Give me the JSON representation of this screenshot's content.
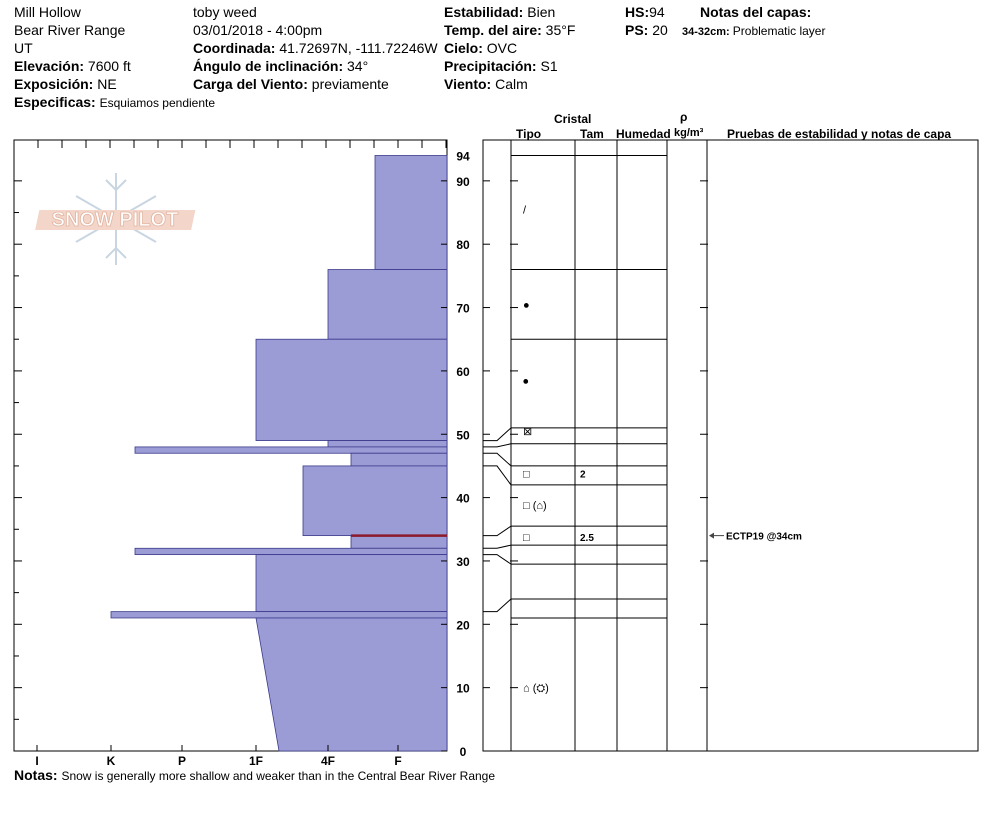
{
  "header": {
    "location": "Mill Hollow",
    "range": "Bear River Range",
    "state": "UT",
    "elevation_label": "Elevación:",
    "elevation": "7600 ft",
    "aspect_label": "Exposición:",
    "aspect": "NE",
    "specifics_label": "Especificas:",
    "specifics": "Esquiamos pendiente",
    "observer": "toby weed",
    "datetime": "03/01/2018 - 4:00pm",
    "coord_label": "Coordinada:",
    "coord": "41.72697N, -111.72246W",
    "slope_label": "Ángulo de inclinación:",
    "slope": "34°",
    "wind_load_label": "Carga del Viento:",
    "wind_load": "previamente",
    "stability_label": "Estabilidad:",
    "stability": "Bien",
    "air_temp_label": "Temp. del aire:",
    "air_temp": "35°F",
    "sky_label": "Cielo:",
    "sky": "OVC",
    "precip_label": "Precipitación:",
    "precip": "S1",
    "wind_label": "Viento:",
    "wind": "Calm",
    "hs_label": "HS:",
    "hs": "94",
    "ps_label": "PS:",
    "ps": "20",
    "layer_notes_label": "Notas del capas:",
    "layer_note_range": "34-32cm:",
    "layer_note": "Problematic layer"
  },
  "logo_text": "SNOW PILOT",
  "table_headers": {
    "cristal": "Cristal",
    "rho": "ρ",
    "tipo": "Tipo",
    "tam": "Tam",
    "humedad": "Humedad",
    "density_unit": "kg/m³",
    "tests": "Pruebas de estabilidad y notas de capa"
  },
  "footer": {
    "notes_label": "Notas:",
    "notes": "Snow is generally more shallow and weaker than in the Central Bear River Range"
  },
  "chart_data": {
    "type": "bar",
    "description_axis": "height (cm) vs hand hardness",
    "height_ticks": [
      0,
      10,
      20,
      30,
      40,
      50,
      60,
      70,
      80,
      90
    ],
    "top_label": "94",
    "height_range": [
      0,
      94
    ],
    "hardness_categories": [
      "I",
      "K",
      "P",
      "1F",
      "4F",
      "F"
    ],
    "colors": {
      "fill": "#9b9bd6",
      "stroke": "#3a3a8a",
      "problem": "#8b1a2a"
    },
    "layers": [
      {
        "top": 94,
        "bottom": 76,
        "hardness": "F"
      },
      {
        "top": 76,
        "bottom": 65,
        "hardness": "4F"
      },
      {
        "top": 65,
        "bottom": 49,
        "hardness": "1F"
      },
      {
        "top": 49,
        "bottom": 48,
        "hardness": "4F"
      },
      {
        "top": 48,
        "bottom": 47,
        "hardness": "K+"
      },
      {
        "top": 47,
        "bottom": 45,
        "hardness": "4F-F"
      },
      {
        "top": 45,
        "bottom": 34,
        "hardness": "P-1F"
      },
      {
        "top": 34,
        "bottom": 32,
        "hardness": "4F-F"
      },
      {
        "top": 32,
        "bottom": 31,
        "hardness": "K+"
      },
      {
        "top": 31,
        "bottom": 22,
        "hardness": "1F"
      },
      {
        "top": 22,
        "bottom": 21,
        "hardness": "K"
      },
      {
        "top": 21,
        "bottom": 0,
        "hardness": "1F to 1F-4F"
      }
    ],
    "crystals": [
      {
        "height": 85.5,
        "symbol": "/"
      },
      {
        "height": 70.5,
        "symbol": "●"
      },
      {
        "height": 58.5,
        "symbol": "⦁"
      },
      {
        "height": 50.5,
        "symbol": "⊠"
      },
      {
        "height": 43.8,
        "symbol": "□",
        "size": "2"
      },
      {
        "height": 38.8,
        "symbol": "□ (⌂)"
      },
      {
        "height": 33.8,
        "symbol": "□",
        "size": "2.5"
      },
      {
        "height": 10,
        "symbol": "⌂ (⛭)"
      }
    ],
    "row_lines": [
      94,
      76,
      65,
      51,
      48.5,
      45,
      42,
      35.5,
      32.5,
      29.5,
      24,
      21
    ],
    "stability_tests": [
      {
        "height": 34,
        "label": "ECTP19 @34cm"
      }
    ]
  }
}
